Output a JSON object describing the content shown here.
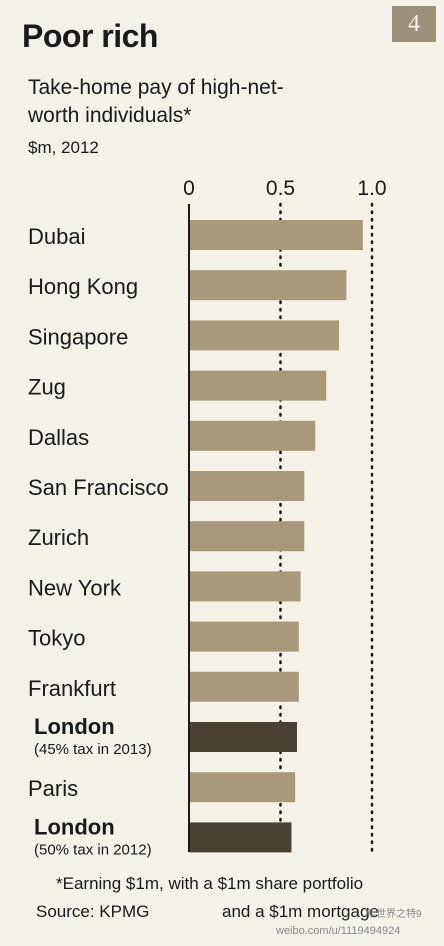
{
  "badge": "4",
  "title": "Poor rich",
  "subtitle": "Take-home pay of high-net-worth individuals*",
  "units": "$m, 2012",
  "footnote": "*Earning $1m, with a $1m share portfolio",
  "footnote2": "and a $1m mortgage",
  "source": "Source: KPMG",
  "watermark": "weibo.com/u/1119494924",
  "watermark2": "新世界之特9",
  "colors": {
    "bar": "#a8997a",
    "bar_highlight": "#4a4234",
    "background": "#f4f1e8"
  },
  "chart_data": {
    "type": "bar",
    "orientation": "horizontal",
    "xlim": [
      0,
      1.0
    ],
    "ticks": [
      "0",
      "0.5",
      "1.0"
    ],
    "tick_values": [
      0,
      0.5,
      1.0
    ],
    "grid": "dotted vertical at 0.5 and 1.0",
    "categories": [
      {
        "label": "Dubai",
        "value": 0.95,
        "bold": false,
        "note": ""
      },
      {
        "label": "Hong Kong",
        "value": 0.86,
        "bold": false,
        "note": ""
      },
      {
        "label": "Singapore",
        "value": 0.82,
        "bold": false,
        "note": ""
      },
      {
        "label": "Zug",
        "value": 0.75,
        "bold": false,
        "note": ""
      },
      {
        "label": "Dallas",
        "value": 0.69,
        "bold": false,
        "note": ""
      },
      {
        "label": "San Francisco",
        "value": 0.63,
        "bold": false,
        "note": ""
      },
      {
        "label": "Zurich",
        "value": 0.63,
        "bold": false,
        "note": ""
      },
      {
        "label": "New York",
        "value": 0.61,
        "bold": false,
        "note": ""
      },
      {
        "label": "Tokyo",
        "value": 0.6,
        "bold": false,
        "note": ""
      },
      {
        "label": "Frankfurt",
        "value": 0.6,
        "bold": false,
        "note": ""
      },
      {
        "label": "London",
        "value": 0.59,
        "bold": true,
        "note": "(45% tax in 2013)"
      },
      {
        "label": "Paris",
        "value": 0.58,
        "bold": false,
        "note": ""
      },
      {
        "label": "London",
        "value": 0.56,
        "bold": true,
        "note": "(50% tax in 2012)"
      }
    ]
  }
}
